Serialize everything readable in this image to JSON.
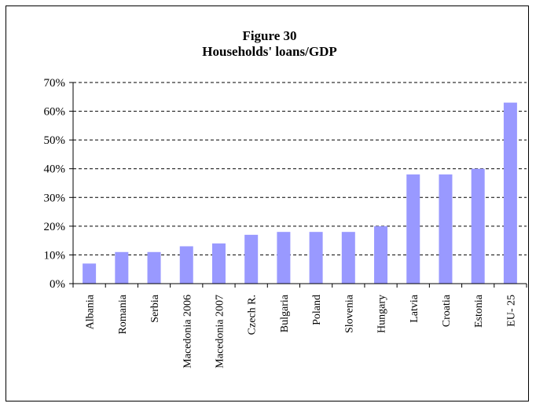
{
  "chart_data": {
    "type": "bar",
    "title": "Figure 30",
    "subtitle": "Households' loans/GDP",
    "categories": [
      "Albania",
      "Romania",
      "Serbia",
      "Macedonia 2006",
      "Macedonia 2007",
      "Czech R.",
      "Bulgaria",
      "Poland",
      "Slovenia",
      "Hungary",
      "Latvia",
      "Croatia",
      "Estonia",
      "EU- 25"
    ],
    "values": [
      7,
      11,
      11,
      13,
      14,
      17,
      18,
      18,
      18,
      20,
      38,
      38,
      40,
      63
    ],
    "ylim": [
      0,
      70
    ],
    "yticks": [
      "0%",
      "10%",
      "20%",
      "30%",
      "40%",
      "50%",
      "60%",
      "70%"
    ],
    "xlabel": "",
    "ylabel": "",
    "grid": true,
    "bar_color": "#9999ff"
  }
}
